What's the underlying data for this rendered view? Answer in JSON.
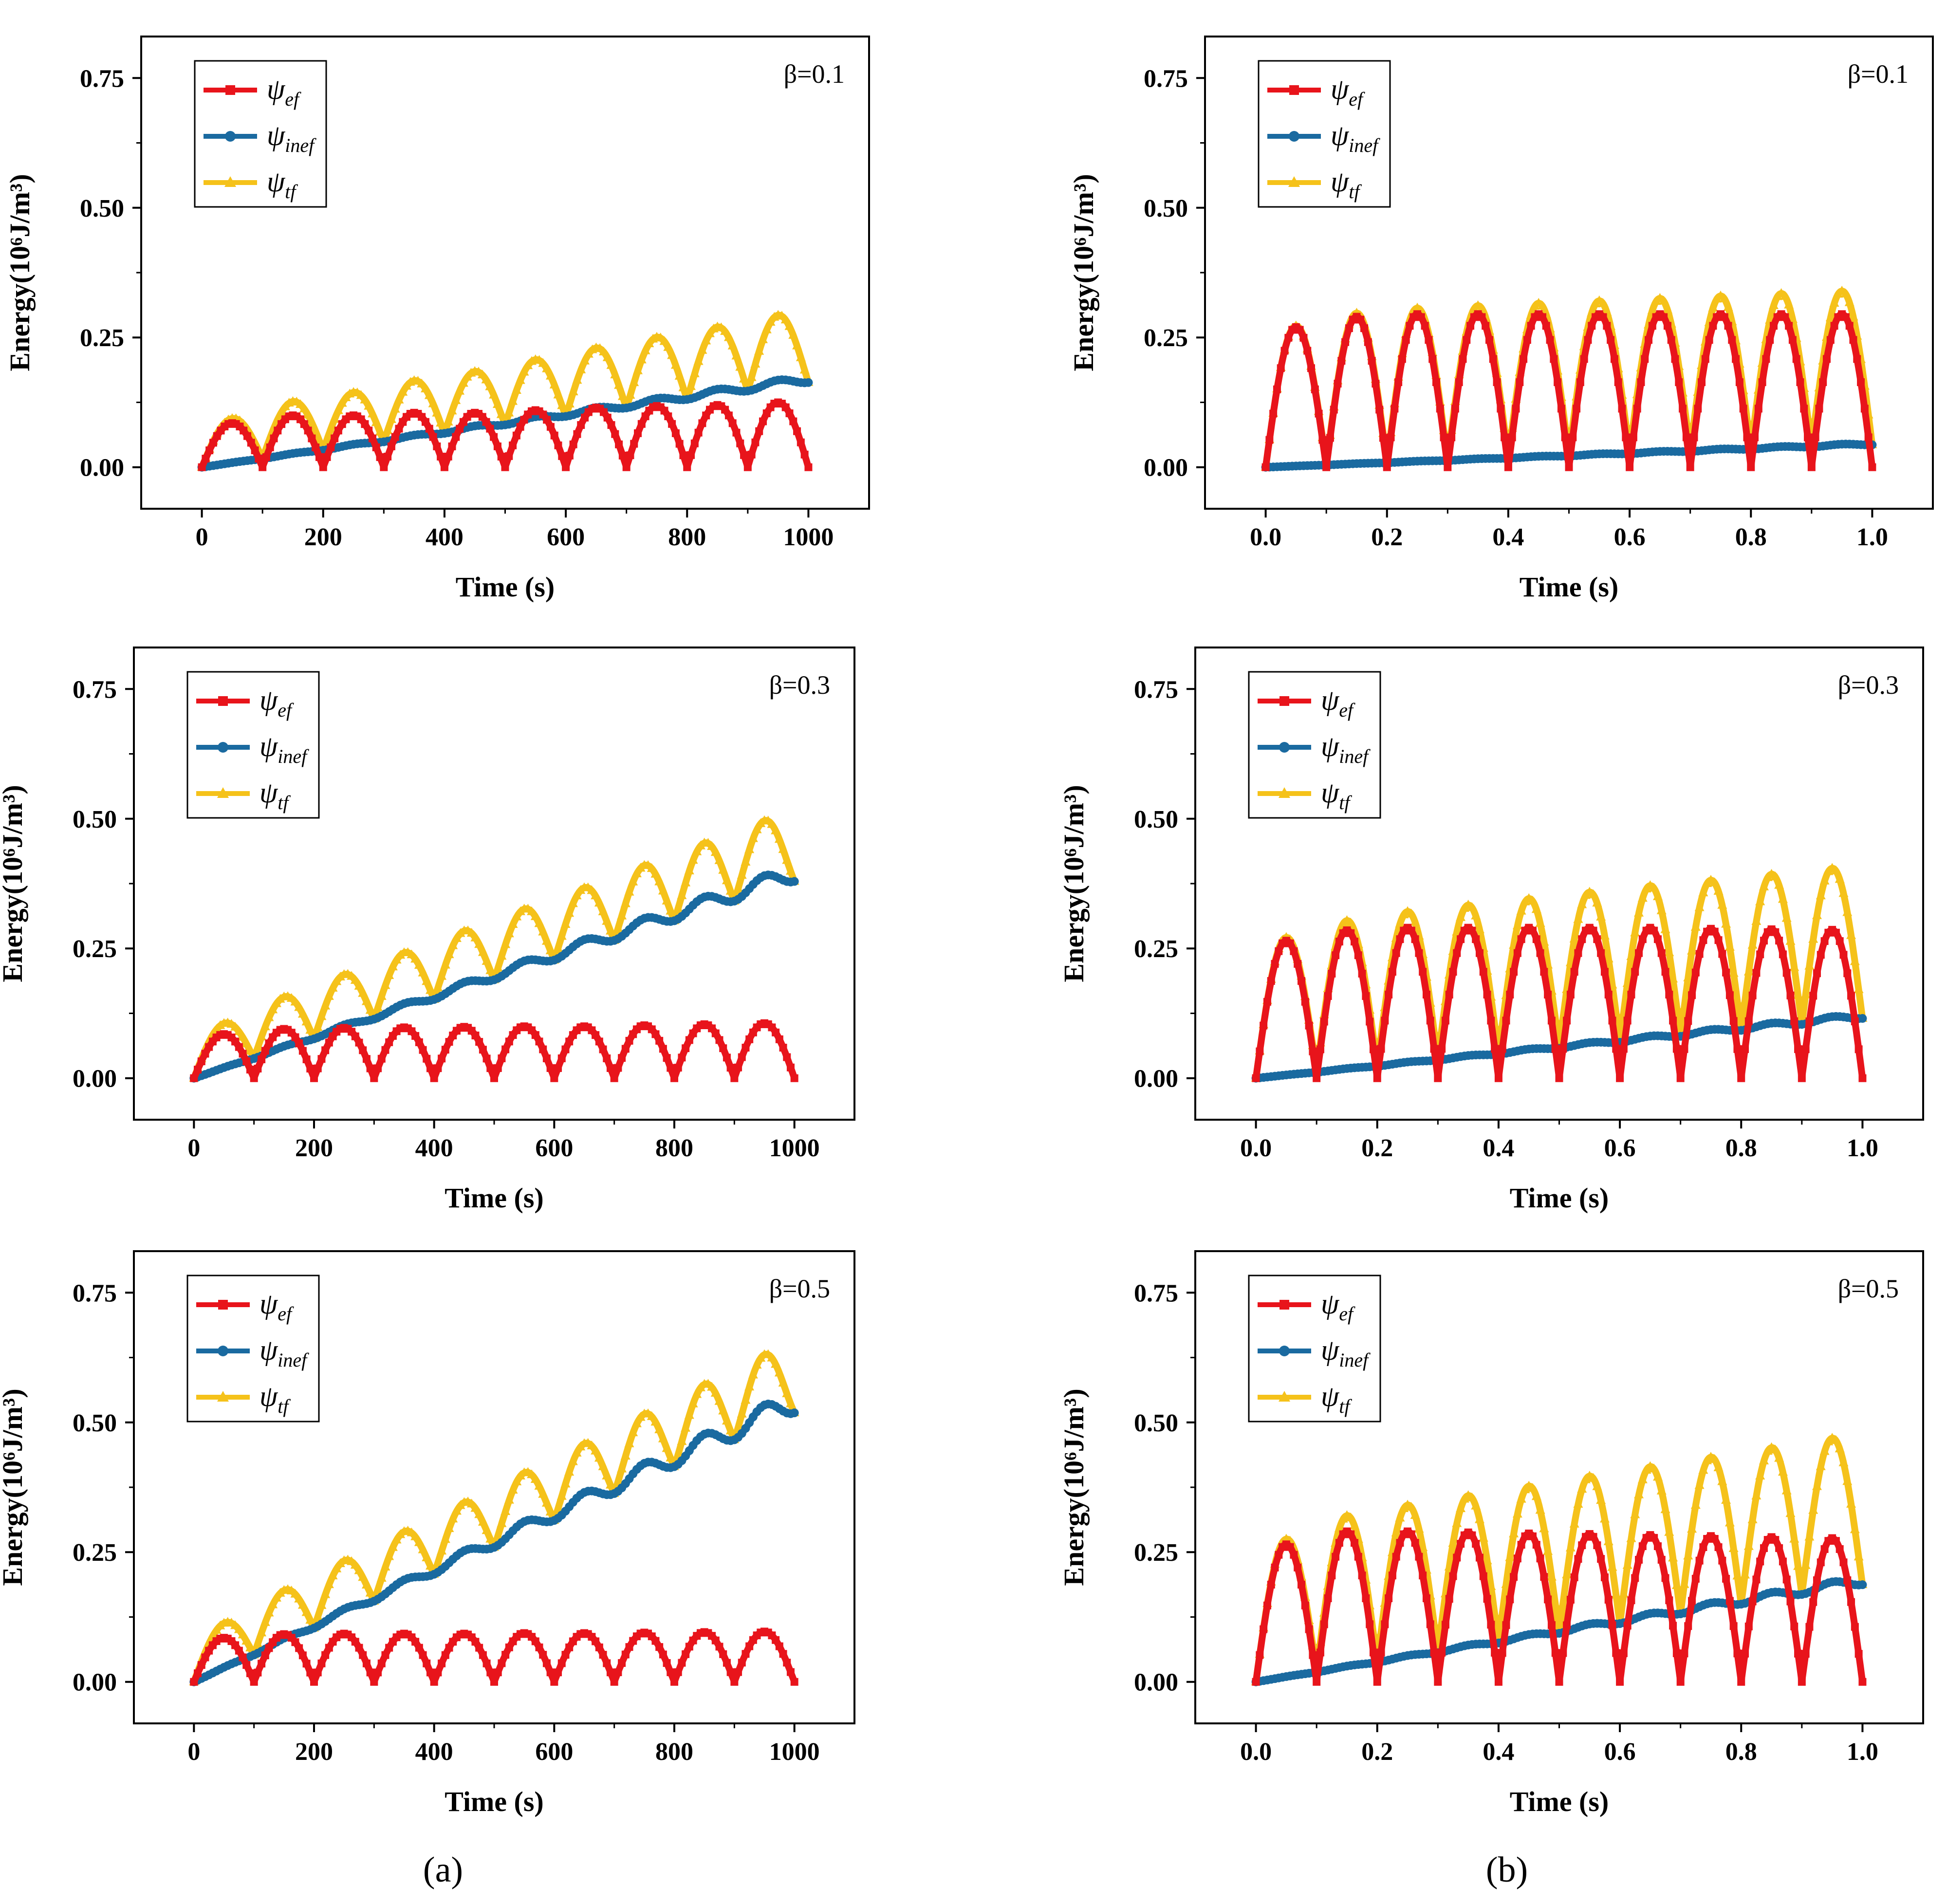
{
  "panel_labels": [
    "(a)",
    "(b)"
  ],
  "colors": {
    "psi_ef": "#e8141b",
    "psi_inef": "#1a6aa0",
    "psi_tf": "#f5c21a",
    "axis": "#000000"
  },
  "chart_data": [
    {
      "type": "line",
      "column": "a",
      "annotation": "β=0.1",
      "xlabel": "Time (s)",
      "ylabel": "Energy(10⁶J/m³)",
      "xlim": [
        -100,
        1100
      ],
      "ylim": [
        -0.08,
        0.83
      ],
      "xticks": [
        0,
        200,
        400,
        600,
        800,
        1000
      ],
      "xtick_labels": [
        "0",
        "200",
        "400",
        "600",
        "800",
        "1000"
      ],
      "yticks": [
        0,
        0.25,
        0.5,
        0.75
      ],
      "ytick_labels": [
        "0.00",
        "0.25",
        "0.50",
        "0.75"
      ],
      "period": 100,
      "t_max": 1000,
      "ef_peaks": [
        0.085,
        0.1,
        0.1,
        0.105,
        0.105,
        0.11,
        0.115,
        0.118,
        0.12,
        0.125
      ],
      "inef_end": 0.17,
      "series": [
        {
          "key": "psi_ef",
          "symbol": "ψ",
          "sub": "ef",
          "marker": "square"
        },
        {
          "key": "psi_inef",
          "symbol": "ψ",
          "sub": "inef",
          "marker": "circle"
        },
        {
          "key": "psi_tf",
          "symbol": "ψ",
          "sub": "tf",
          "marker": "triangle"
        }
      ]
    },
    {
      "type": "line",
      "column": "b",
      "annotation": "β=0.1",
      "xlabel": "Time (s)",
      "ylabel": "Energy(10⁶J/m³)",
      "xlim": [
        -0.1,
        1.1
      ],
      "ylim": [
        -0.08,
        0.83
      ],
      "xticks": [
        0,
        0.2,
        0.4,
        0.6,
        0.8,
        1.0
      ],
      "xtick_labels": [
        "0.0",
        "0.2",
        "0.4",
        "0.6",
        "0.8",
        "1.0"
      ],
      "yticks": [
        0,
        0.25,
        0.5,
        0.75
      ],
      "ytick_labels": [
        "0.00",
        "0.25",
        "0.50",
        "0.75"
      ],
      "period": 0.1,
      "t_max": 1.0,
      "ef_peaks": [
        0.27,
        0.29,
        0.295,
        0.295,
        0.295,
        0.295,
        0.295,
        0.295,
        0.295,
        0.295
      ],
      "inef_end": 0.045,
      "series": [
        {
          "key": "psi_ef",
          "symbol": "ψ",
          "sub": "ef",
          "marker": "square"
        },
        {
          "key": "psi_inef",
          "symbol": "ψ",
          "sub": "inef",
          "marker": "circle"
        },
        {
          "key": "psi_tf",
          "symbol": "ψ",
          "sub": "tf",
          "marker": "triangle"
        }
      ]
    },
    {
      "type": "line",
      "column": "a",
      "annotation": "β=0.3",
      "xlabel": "Time (s)",
      "ylabel": "Energy(10⁶J/m³)",
      "xlim": [
        -100,
        1100
      ],
      "ylim": [
        -0.08,
        0.83
      ],
      "xticks": [
        0,
        200,
        400,
        600,
        800,
        1000
      ],
      "xtick_labels": [
        "0",
        "200",
        "400",
        "600",
        "800",
        "1000"
      ],
      "yticks": [
        0,
        0.25,
        0.5,
        0.75
      ],
      "ytick_labels": [
        "0.00",
        "0.25",
        "0.50",
        "0.75"
      ],
      "period": 100,
      "t_max": 1000,
      "ef_peaks": [
        0.085,
        0.095,
        0.097,
        0.098,
        0.099,
        0.1,
        0.1,
        0.102,
        0.104,
        0.106
      ],
      "inef_end": 0.395,
      "series": [
        {
          "key": "psi_ef",
          "symbol": "ψ",
          "sub": "ef",
          "marker": "square"
        },
        {
          "key": "psi_inef",
          "symbol": "ψ",
          "sub": "inef",
          "marker": "circle"
        },
        {
          "key": "psi_tf",
          "symbol": "ψ",
          "sub": "tf",
          "marker": "triangle"
        }
      ]
    },
    {
      "type": "line",
      "column": "b",
      "annotation": "β=0.3",
      "xlabel": "Time (s)",
      "ylabel": "Energy(10⁶J/m³)",
      "xlim": [
        -0.1,
        1.1
      ],
      "ylim": [
        -0.08,
        0.83
      ],
      "xticks": [
        0,
        0.2,
        0.4,
        0.6,
        0.8,
        1.0
      ],
      "xtick_labels": [
        "0.0",
        "0.2",
        "0.4",
        "0.6",
        "0.8",
        "1.0"
      ],
      "yticks": [
        0,
        0.25,
        0.5,
        0.75
      ],
      "ytick_labels": [
        "0.00",
        "0.25",
        "0.50",
        "0.75"
      ],
      "period": 0.1,
      "t_max": 1.0,
      "ef_peaks": [
        0.265,
        0.285,
        0.29,
        0.29,
        0.29,
        0.29,
        0.29,
        0.288,
        0.287,
        0.286
      ],
      "inef_end": 0.12,
      "series": [
        {
          "key": "psi_ef",
          "symbol": "ψ",
          "sub": "ef",
          "marker": "square"
        },
        {
          "key": "psi_inef",
          "symbol": "ψ",
          "sub": "inef",
          "marker": "circle"
        },
        {
          "key": "psi_tf",
          "symbol": "ψ",
          "sub": "tf",
          "marker": "triangle"
        }
      ]
    },
    {
      "type": "line",
      "column": "a",
      "annotation": "β=0.5",
      "xlabel": "Time (s)",
      "ylabel": "Energy(10⁶J/m³)",
      "xlim": [
        -100,
        1100
      ],
      "ylim": [
        -0.08,
        0.83
      ],
      "xticks": [
        0,
        200,
        400,
        600,
        800,
        1000
      ],
      "xtick_labels": [
        "0",
        "200",
        "400",
        "600",
        "800",
        "1000"
      ],
      "yticks": [
        0,
        0.25,
        0.5,
        0.75
      ],
      "ytick_labels": [
        "0.00",
        "0.25",
        "0.50",
        "0.75"
      ],
      "period": 100,
      "t_max": 1000,
      "ef_peaks": [
        0.085,
        0.092,
        0.093,
        0.093,
        0.093,
        0.094,
        0.094,
        0.095,
        0.096,
        0.097
      ],
      "inef_end": 0.54,
      "series": [
        {
          "key": "psi_ef",
          "symbol": "ψ",
          "sub": "ef",
          "marker": "square"
        },
        {
          "key": "psi_inef",
          "symbol": "ψ",
          "sub": "inef",
          "marker": "circle"
        },
        {
          "key": "psi_tf",
          "symbol": "ψ",
          "sub": "tf",
          "marker": "triangle"
        }
      ]
    },
    {
      "type": "line",
      "column": "b",
      "annotation": "β=0.5",
      "xlabel": "Time (s)",
      "ylabel": "Energy(10⁶J/m³)",
      "xlim": [
        -0.1,
        1.1
      ],
      "ylim": [
        -0.08,
        0.83
      ],
      "xticks": [
        0,
        0.2,
        0.4,
        0.6,
        0.8,
        1.0
      ],
      "xtick_labels": [
        "0.0",
        "0.2",
        "0.4",
        "0.6",
        "0.8",
        "1.0"
      ],
      "yticks": [
        0,
        0.25,
        0.5,
        0.75
      ],
      "ytick_labels": [
        "0.00",
        "0.25",
        "0.50",
        "0.75"
      ],
      "period": 0.1,
      "t_max": 1.0,
      "ef_peaks": [
        0.265,
        0.29,
        0.29,
        0.288,
        0.286,
        0.285,
        0.283,
        0.281,
        0.279,
        0.277
      ],
      "inef_end": 0.195,
      "series": [
        {
          "key": "psi_ef",
          "symbol": "ψ",
          "sub": "ef",
          "marker": "square"
        },
        {
          "key": "psi_inef",
          "symbol": "ψ",
          "sub": "inef",
          "marker": "circle"
        },
        {
          "key": "psi_tf",
          "symbol": "ψ",
          "sub": "tf",
          "marker": "triangle"
        }
      ]
    }
  ]
}
